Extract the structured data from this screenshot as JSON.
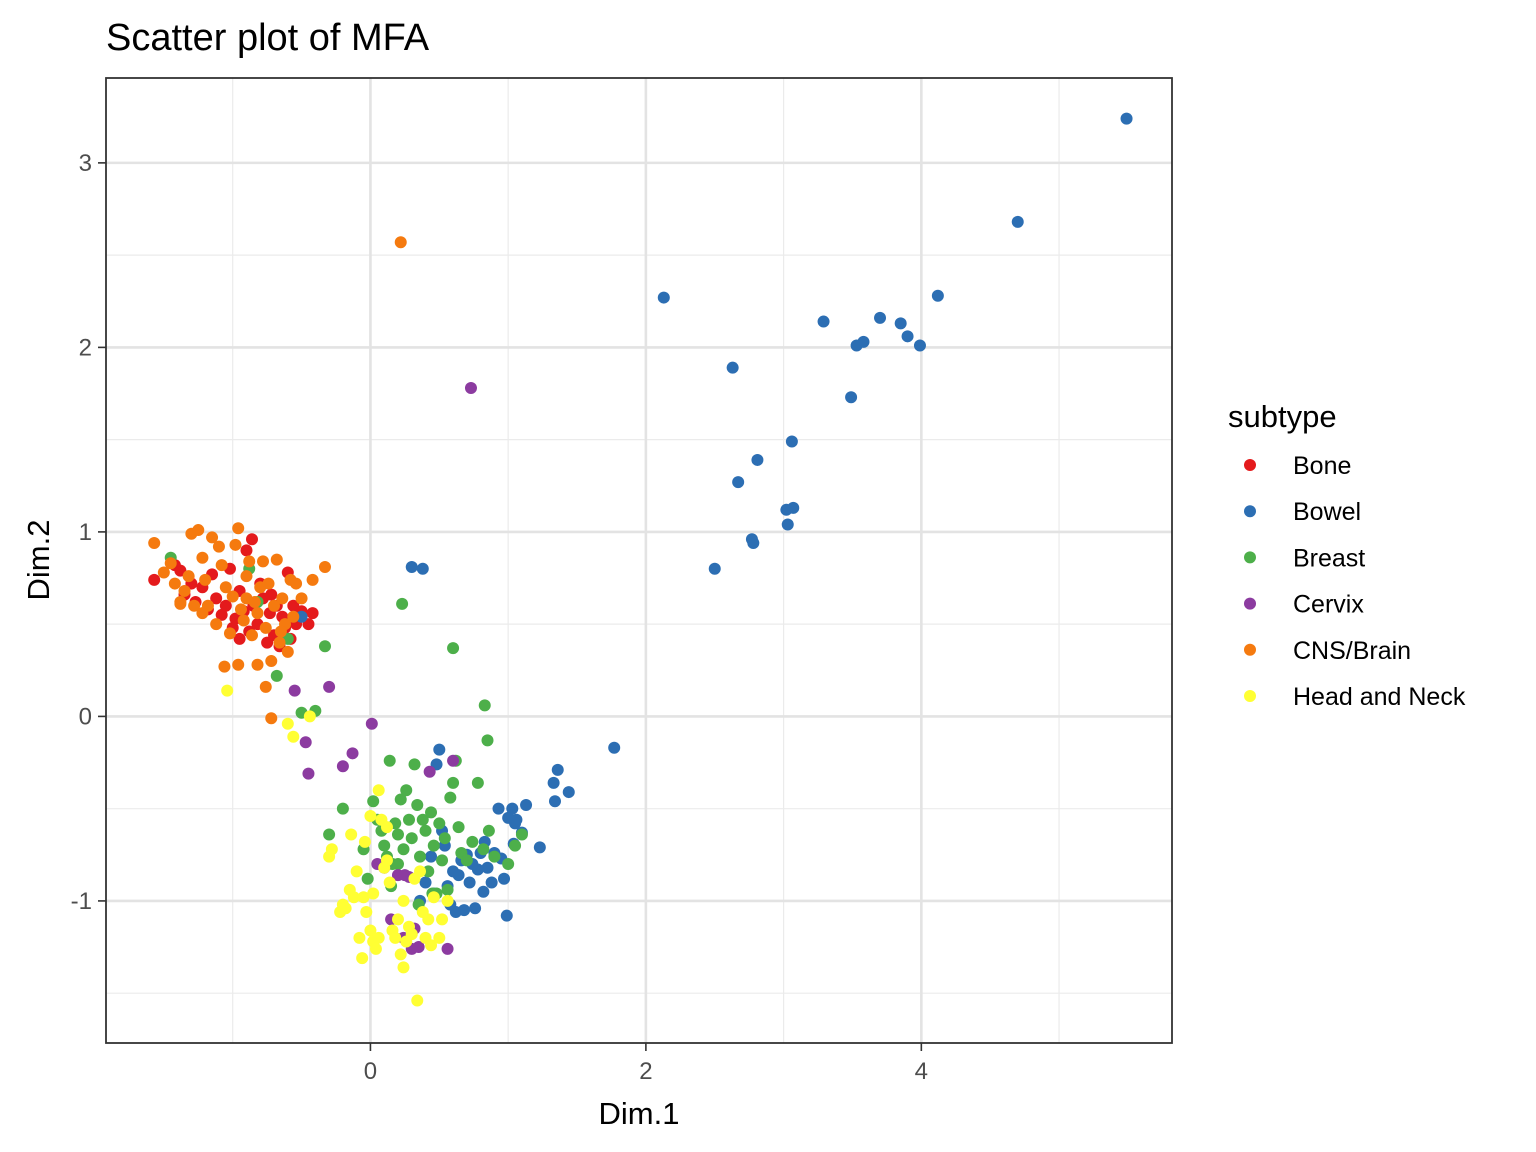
{
  "chart_data": {
    "type": "scatter",
    "title": "Scatter plot of MFA",
    "xlabel": "Dim.1",
    "ylabel": "Dim.2",
    "xlim": [
      -1.92,
      5.82
    ],
    "ylim": [
      -1.77,
      3.46
    ],
    "x_ticks": [
      0,
      2,
      4
    ],
    "x_tick_labels": [
      "0",
      "2",
      "4"
    ],
    "y_ticks": [
      -1,
      0,
      1,
      2,
      3
    ],
    "y_tick_labels": [
      "-1",
      "0",
      "1",
      "2",
      "3"
    ],
    "grid": true,
    "legend": {
      "title": "subtype",
      "position": "right"
    },
    "series": [
      {
        "name": "Bone",
        "color": "#e41a1c",
        "points": [
          [
            -1.57,
            0.74
          ],
          [
            -1.42,
            0.82
          ],
          [
            -1.38,
            0.79
          ],
          [
            -1.35,
            0.66
          ],
          [
            -1.3,
            0.72
          ],
          [
            -1.27,
            0.62
          ],
          [
            -1.22,
            0.7
          ],
          [
            -1.18,
            0.58
          ],
          [
            -1.15,
            0.77
          ],
          [
            -1.12,
            0.64
          ],
          [
            -1.08,
            0.55
          ],
          [
            -1.05,
            0.6
          ],
          [
            -1.02,
            0.8
          ],
          [
            -0.98,
            0.53
          ],
          [
            -0.95,
            0.68
          ],
          [
            -0.92,
            0.57
          ],
          [
            -0.9,
            0.9
          ],
          [
            -0.88,
            0.46
          ],
          [
            -0.85,
            0.6
          ],
          [
            -0.82,
            0.5
          ],
          [
            -0.8,
            0.72
          ],
          [
            -0.78,
            0.64
          ],
          [
            -0.75,
            0.4
          ],
          [
            -0.73,
            0.56
          ],
          [
            -0.7,
            0.44
          ],
          [
            -0.68,
            0.6
          ],
          [
            -0.66,
            0.38
          ],
          [
            -0.64,
            0.54
          ],
          [
            -0.62,
            0.48
          ],
          [
            -0.6,
            0.78
          ],
          [
            -0.58,
            0.42
          ],
          [
            -0.56,
            0.6
          ],
          [
            -0.54,
            0.5
          ],
          [
            -0.5,
            0.57
          ],
          [
            -0.45,
            0.5
          ],
          [
            -0.42,
            0.56
          ],
          [
            -0.86,
            0.96
          ],
          [
            -0.72,
            0.66
          ],
          [
            -1.0,
            0.48
          ],
          [
            -0.95,
            0.42
          ]
        ]
      },
      {
        "name": "Bowel",
        "color": "#2c6eb3",
        "points": [
          [
            5.49,
            3.24
          ],
          [
            4.7,
            2.68
          ],
          [
            4.12,
            2.28
          ],
          [
            3.99,
            2.01
          ],
          [
            3.9,
            2.06
          ],
          [
            3.85,
            2.13
          ],
          [
            3.7,
            2.16
          ],
          [
            3.58,
            2.03
          ],
          [
            3.53,
            2.01
          ],
          [
            3.49,
            1.73
          ],
          [
            3.29,
            2.14
          ],
          [
            3.07,
            1.13
          ],
          [
            3.06,
            1.49
          ],
          [
            3.03,
            1.04
          ],
          [
            3.02,
            1.12
          ],
          [
            2.81,
            1.39
          ],
          [
            2.78,
            0.94
          ],
          [
            2.77,
            0.96
          ],
          [
            2.67,
            1.27
          ],
          [
            2.63,
            1.89
          ],
          [
            2.5,
            0.8
          ],
          [
            2.13,
            2.27
          ],
          [
            1.77,
            -0.17
          ],
          [
            1.44,
            -0.41
          ],
          [
            1.36,
            -0.29
          ],
          [
            1.34,
            -0.46
          ],
          [
            1.33,
            -0.36
          ],
          [
            1.23,
            -0.71
          ],
          [
            1.13,
            -0.48
          ],
          [
            1.1,
            -0.63
          ],
          [
            1.06,
            -0.56
          ],
          [
            1.05,
            -0.58
          ],
          [
            1.04,
            -0.69
          ],
          [
            1.03,
            -0.5
          ],
          [
            1.0,
            -0.55
          ],
          [
            0.99,
            -1.08
          ],
          [
            0.97,
            -0.88
          ],
          [
            0.95,
            -0.77
          ],
          [
            0.93,
            -0.5
          ],
          [
            0.9,
            -0.74
          ],
          [
            0.88,
            -0.9
          ],
          [
            0.85,
            -0.82
          ],
          [
            0.83,
            -0.68
          ],
          [
            0.82,
            -0.95
          ],
          [
            0.8,
            -0.74
          ],
          [
            0.78,
            -0.83
          ],
          [
            0.76,
            -1.04
          ],
          [
            0.74,
            -0.8
          ],
          [
            0.72,
            -0.9
          ],
          [
            0.7,
            -0.75
          ],
          [
            0.68,
            -1.05
          ],
          [
            0.66,
            -0.78
          ],
          [
            0.64,
            -0.86
          ],
          [
            0.62,
            -1.06
          ],
          [
            0.6,
            -0.84
          ],
          [
            0.58,
            -1.02
          ],
          [
            0.56,
            -0.92
          ],
          [
            0.54,
            -0.7
          ],
          [
            0.52,
            -0.62
          ],
          [
            0.5,
            -0.18
          ],
          [
            0.48,
            -0.26
          ],
          [
            0.46,
            -0.96
          ],
          [
            0.44,
            -0.76
          ],
          [
            0.4,
            -0.9
          ],
          [
            0.36,
            -1.0
          ],
          [
            0.38,
            0.8
          ],
          [
            0.3,
            0.81
          ],
          [
            -0.5,
            0.54
          ]
        ]
      },
      {
        "name": "Breast",
        "color": "#4daf4a",
        "points": [
          [
            -1.45,
            0.86
          ],
          [
            -0.88,
            0.8
          ],
          [
            -0.82,
            0.62
          ],
          [
            -0.68,
            0.22
          ],
          [
            -0.6,
            0.42
          ],
          [
            -0.5,
            0.02
          ],
          [
            -0.4,
            0.03
          ],
          [
            -0.33,
            0.38
          ],
          [
            -0.3,
            -0.64
          ],
          [
            -0.2,
            -0.5
          ],
          [
            0.23,
            0.61
          ],
          [
            0.6,
            0.37
          ],
          [
            0.83,
            0.06
          ],
          [
            0.85,
            -0.13
          ],
          [
            -0.05,
            -0.72
          ],
          [
            0.02,
            -0.46
          ],
          [
            0.05,
            -0.56
          ],
          [
            0.08,
            -0.62
          ],
          [
            0.1,
            -0.7
          ],
          [
            0.12,
            -0.76
          ],
          [
            0.14,
            -0.24
          ],
          [
            0.16,
            -0.8
          ],
          [
            0.18,
            -0.58
          ],
          [
            0.2,
            -0.64
          ],
          [
            0.22,
            -0.45
          ],
          [
            0.24,
            -0.72
          ],
          [
            0.26,
            -0.4
          ],
          [
            0.28,
            -0.56
          ],
          [
            0.3,
            -0.66
          ],
          [
            0.32,
            -0.26
          ],
          [
            0.34,
            -0.48
          ],
          [
            0.36,
            -0.76
          ],
          [
            0.38,
            -0.56
          ],
          [
            0.4,
            -0.62
          ],
          [
            0.42,
            -0.84
          ],
          [
            0.44,
            -0.52
          ],
          [
            0.46,
            -0.7
          ],
          [
            0.48,
            -0.96
          ],
          [
            0.5,
            -0.58
          ],
          [
            0.52,
            -0.78
          ],
          [
            0.54,
            -0.66
          ],
          [
            0.56,
            -0.94
          ],
          [
            0.58,
            -0.44
          ],
          [
            0.6,
            -0.36
          ],
          [
            0.62,
            -0.24
          ],
          [
            0.64,
            -0.6
          ],
          [
            0.66,
            -0.74
          ],
          [
            0.7,
            -0.78
          ],
          [
            0.74,
            -0.68
          ],
          [
            0.78,
            -0.36
          ],
          [
            0.82,
            -0.72
          ],
          [
            0.86,
            -0.62
          ],
          [
            0.9,
            -0.76
          ],
          [
            1.0,
            -0.8
          ],
          [
            1.05,
            -0.7
          ],
          [
            1.1,
            -0.64
          ],
          [
            -0.02,
            -0.88
          ],
          [
            0.2,
            -0.8
          ],
          [
            0.35,
            -1.02
          ],
          [
            0.45,
            -0.96
          ],
          [
            0.15,
            -0.92
          ]
        ]
      },
      {
        "name": "Cervix",
        "color": "#8c3ba0",
        "points": [
          [
            0.73,
            1.78
          ],
          [
            -0.55,
            0.14
          ],
          [
            -0.3,
            0.16
          ],
          [
            -0.47,
            -0.14
          ],
          [
            -0.45,
            -0.31
          ],
          [
            -0.2,
            -0.27
          ],
          [
            -0.13,
            -0.2
          ],
          [
            0.01,
            -0.04
          ],
          [
            0.43,
            -0.3
          ],
          [
            0.6,
            -0.24
          ],
          [
            0.2,
            -0.86
          ],
          [
            0.28,
            -0.87
          ],
          [
            0.15,
            -1.1
          ],
          [
            0.25,
            -0.86
          ],
          [
            0.3,
            -1.26
          ],
          [
            0.32,
            -1.15
          ],
          [
            0.56,
            -1.26
          ],
          [
            0.1,
            -0.82
          ],
          [
            0.24,
            -1.2
          ],
          [
            0.05,
            -0.8
          ],
          [
            0.35,
            -1.25
          ]
        ]
      },
      {
        "name": "CNS/Brain",
        "color": "#f57a0f",
        "points": [
          [
            0.22,
            2.57
          ],
          [
            -1.57,
            0.94
          ],
          [
            -1.5,
            0.78
          ],
          [
            -1.45,
            0.83
          ],
          [
            -1.42,
            0.72
          ],
          [
            -1.38,
            0.62
          ],
          [
            -1.35,
            0.68
          ],
          [
            -1.32,
            0.76
          ],
          [
            -1.3,
            0.99
          ],
          [
            -1.28,
            0.6
          ],
          [
            -1.25,
            1.01
          ],
          [
            -1.22,
            0.86
          ],
          [
            -1.2,
            0.74
          ],
          [
            -1.18,
            0.6
          ],
          [
            -1.15,
            0.97
          ],
          [
            -1.12,
            0.5
          ],
          [
            -1.1,
            0.92
          ],
          [
            -1.08,
            0.82
          ],
          [
            -1.05,
            0.7
          ],
          [
            -1.02,
            0.45
          ],
          [
            -1.0,
            0.65
          ],
          [
            -0.98,
            0.93
          ],
          [
            -0.96,
            1.02
          ],
          [
            -0.94,
            0.58
          ],
          [
            -0.92,
            0.52
          ],
          [
            -0.9,
            0.76
          ],
          [
            -0.88,
            0.84
          ],
          [
            -0.86,
            0.44
          ],
          [
            -0.84,
            0.62
          ],
          [
            -0.82,
            0.56
          ],
          [
            -0.8,
            0.7
          ],
          [
            -0.78,
            0.84
          ],
          [
            -0.76,
            0.48
          ],
          [
            -0.74,
            0.72
          ],
          [
            -0.72,
            0.3
          ],
          [
            -0.7,
            0.6
          ],
          [
            -0.68,
            0.85
          ],
          [
            -0.66,
            0.4
          ],
          [
            -0.64,
            0.64
          ],
          [
            -0.62,
            0.5
          ],
          [
            -0.6,
            0.35
          ],
          [
            -0.58,
            0.74
          ],
          [
            -0.56,
            0.54
          ],
          [
            -0.54,
            0.72
          ],
          [
            -0.5,
            0.64
          ],
          [
            -0.42,
            0.74
          ],
          [
            -0.33,
            0.81
          ],
          [
            -0.76,
            0.16
          ],
          [
            -0.72,
            -0.01
          ],
          [
            -1.06,
            0.27
          ],
          [
            -0.96,
            0.28
          ],
          [
            -0.82,
            0.28
          ],
          [
            -0.65,
            0.46
          ],
          [
            -1.22,
            0.56
          ],
          [
            -1.38,
            0.61
          ],
          [
            -0.9,
            0.64
          ]
        ]
      },
      {
        "name": "Head and Neck",
        "color": "#ffff33",
        "points": [
          [
            -1.04,
            0.14
          ],
          [
            -0.6,
            -0.04
          ],
          [
            -0.56,
            -0.11
          ],
          [
            -0.44,
            0.0
          ],
          [
            -0.3,
            -0.76
          ],
          [
            -0.28,
            -0.72
          ],
          [
            -0.22,
            -1.06
          ],
          [
            -0.2,
            -1.02
          ],
          [
            -0.15,
            -0.94
          ],
          [
            -0.12,
            -0.98
          ],
          [
            -0.1,
            -0.84
          ],
          [
            -0.08,
            -1.2
          ],
          [
            -0.06,
            -1.31
          ],
          [
            -0.05,
            -0.98
          ],
          [
            -0.03,
            -1.06
          ],
          [
            0.0,
            -1.16
          ],
          [
            0.02,
            -1.22
          ],
          [
            0.04,
            -1.26
          ],
          [
            0.06,
            -1.2
          ],
          [
            0.08,
            -0.56
          ],
          [
            0.1,
            -0.82
          ],
          [
            0.12,
            -0.78
          ],
          [
            0.14,
            -0.9
          ],
          [
            0.16,
            -1.16
          ],
          [
            0.18,
            -1.2
          ],
          [
            0.2,
            -1.1
          ],
          [
            0.22,
            -1.29
          ],
          [
            0.24,
            -1.36
          ],
          [
            0.26,
            -1.22
          ],
          [
            0.28,
            -1.14
          ],
          [
            0.3,
            -1.18
          ],
          [
            0.32,
            -0.88
          ],
          [
            0.34,
            -1.54
          ],
          [
            0.36,
            -0.84
          ],
          [
            0.38,
            -1.06
          ],
          [
            0.4,
            -1.2
          ],
          [
            0.42,
            -1.1
          ],
          [
            0.44,
            -1.24
          ],
          [
            0.46,
            -0.98
          ],
          [
            0.5,
            -1.2
          ],
          [
            0.52,
            -1.1
          ],
          [
            0.56,
            -1.0
          ],
          [
            0.06,
            -0.4
          ],
          [
            0.0,
            -0.54
          ],
          [
            -0.04,
            -0.68
          ],
          [
            -0.14,
            -0.64
          ],
          [
            0.12,
            -0.6
          ],
          [
            0.02,
            -0.96
          ],
          [
            -0.18,
            -1.04
          ],
          [
            0.24,
            -1.0
          ]
        ]
      }
    ]
  }
}
